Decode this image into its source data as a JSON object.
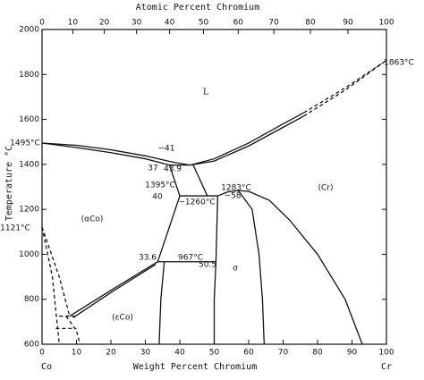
{
  "chart_data": {
    "type": "line",
    "top_axis_label": "Atomic Percent Chromium",
    "xlabel": "Weight Percent Chromium",
    "ylabel": "Temperature °C",
    "x_end_labels": [
      "Co",
      "Cr"
    ],
    "xlim": [
      0,
      100
    ],
    "ylim": [
      600,
      2000
    ],
    "xticks": [
      0,
      10,
      20,
      30,
      40,
      50,
      60,
      70,
      80,
      90,
      100
    ],
    "yticks": [
      600,
      800,
      1000,
      1200,
      1400,
      1600,
      1800,
      2000
    ],
    "top_ticks": [
      {
        "value": 0,
        "label": "0"
      },
      {
        "value": 8.93,
        "label": "10"
      },
      {
        "value": 18.07,
        "label": "20"
      },
      {
        "value": 27.44,
        "label": "30"
      },
      {
        "value": 37.04,
        "label": "40"
      },
      {
        "value": 46.87,
        "label": "50"
      },
      {
        "value": 56.96,
        "label": "60"
      },
      {
        "value": 67.31,
        "label": "70"
      },
      {
        "value": 77.92,
        "label": "80"
      },
      {
        "value": 88.82,
        "label": "90"
      },
      {
        "value": 100,
        "label": "100"
      }
    ],
    "annotations": [
      "L",
      "1495°C",
      "1863°C",
      "1121°C",
      "~41",
      "37",
      "43.9",
      "1395°C",
      "40",
      "~1260°C",
      "1283°C",
      "~58",
      "(αCo)",
      "(Cr)",
      "33.6",
      "967°C",
      "50.5",
      "σ",
      "(εCo)"
    ],
    "series": [
      {
        "color": "#111",
        "x": [
          0,
          10,
          20,
          30,
          38,
          43,
          50,
          60,
          70,
          76
        ],
        "values": [
          1495,
          1485,
          1465,
          1438,
          1410,
          1397,
          1425,
          1495,
          1580,
          1630
        ]
      },
      {
        "color": "#111",
        "dash": true,
        "x": [
          76,
          88,
          100
        ],
        "values": [
          1630,
          1740,
          1863
        ]
      },
      {
        "color": "#111",
        "x": [
          43,
          50,
          60,
          70,
          76
        ],
        "values": [
          1397,
          1415,
          1482,
          1565,
          1615
        ]
      },
      {
        "color": "#111",
        "dash": true,
        "x": [
          76,
          88,
          100
        ],
        "values": [
          1615,
          1730,
          1863
        ]
      },
      {
        "color": "#111",
        "x": [
          0,
          10,
          20,
          30,
          37,
          43
        ],
        "values": [
          1495,
          1475,
          1452,
          1425,
          1397,
          1397
        ]
      },
      {
        "color": "#111",
        "x": [
          37,
          40
        ],
        "values": [
          1397,
          1260
        ]
      },
      {
        "color": "#111",
        "x": [
          43.9,
          48
        ],
        "values": [
          1397,
          1260
        ]
      },
      {
        "color": "#111",
        "x": [
          40,
          51
        ],
        "values": [
          1260,
          1260
        ]
      },
      {
        "color": "#111",
        "x": [
          40,
          33.6
        ],
        "values": [
          1260,
          967
        ]
      },
      {
        "color": "#111",
        "x": [
          51,
          50.5
        ],
        "values": [
          1260,
          967
        ]
      },
      {
        "color": "#111",
        "x": [
          33.6,
          50.5
        ],
        "values": [
          967,
          967
        ]
      },
      {
        "color": "#111",
        "x": [
          35.5,
          34.5,
          34
        ],
        "values": [
          967,
          800,
          600
        ]
      },
      {
        "color": "#111",
        "x": [
          50.5,
          50,
          50
        ],
        "values": [
          967,
          800,
          600
        ]
      },
      {
        "color": "#111",
        "x": [
          51,
          54,
          57,
          60
        ],
        "values": [
          1260,
          1278,
          1283,
          1280
        ]
      },
      {
        "color": "#111",
        "x": [
          57,
          61,
          63,
          64,
          64.5
        ],
        "values": [
          1283,
          1200,
          1000,
          800,
          600
        ]
      },
      {
        "color": "#111",
        "x": [
          60,
          66,
          72,
          80,
          88,
          93
        ],
        "values": [
          1280,
          1240,
          1150,
          1000,
          800,
          600
        ]
      },
      {
        "color": "#111",
        "x": [
          33.6,
          20,
          8
        ],
        "values": [
          967,
          840,
          725
        ]
      },
      {
        "color": "#111",
        "x": [
          33,
          20,
          9
        ],
        "values": [
          955,
          830,
          718
        ]
      },
      {
        "color": "#111",
        "dash": true,
        "x": [
          0,
          5,
          8
        ],
        "values": [
          1121,
          900,
          725
        ]
      },
      {
        "color": "#111",
        "dash": true,
        "x": [
          0,
          3,
          5
        ],
        "values": [
          1121,
          900,
          600
        ]
      },
      {
        "color": "#111",
        "dash": true,
        "x": [
          5,
          10
        ],
        "values": [
          725,
          725
        ]
      },
      {
        "color": "#111",
        "dash": true,
        "x": [
          7,
          10,
          11
        ],
        "values": [
          725,
          660,
          600
        ]
      },
      {
        "color": "#111",
        "dash": true,
        "x": [
          4,
          10
        ],
        "values": [
          670,
          670
        ]
      }
    ]
  }
}
